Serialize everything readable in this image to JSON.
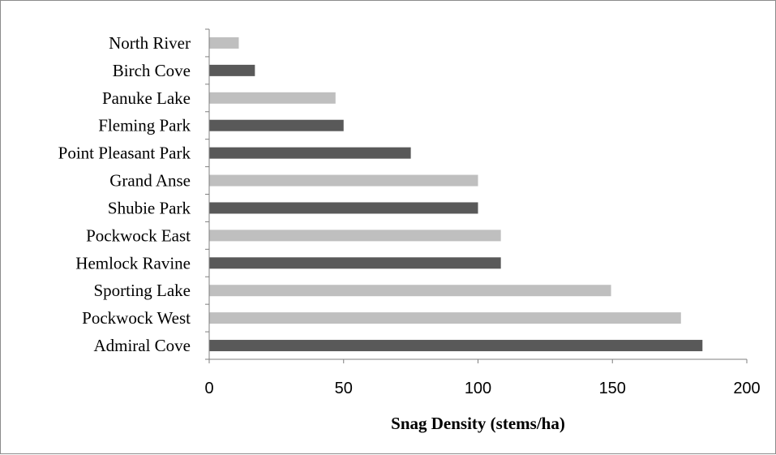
{
  "chart_data": {
    "type": "bar",
    "orientation": "horizontal",
    "title": "",
    "xlabel": "Snag Density (stems/ha)",
    "ylabel": "",
    "xlim": [
      0,
      200
    ],
    "x_ticks": [
      0,
      50,
      100,
      150,
      200
    ],
    "grid": false,
    "legend": "none",
    "categories": [
      "North River",
      "Birch Cove",
      "Panuke Lake",
      "Fleming Park",
      "Point Pleasant Park",
      "Grand Anse",
      "Shubie Park",
      "Pockwock East",
      "Hemlock Ravine",
      "Sporting Lake",
      "Pockwock West",
      "Admiral Cove"
    ],
    "values": [
      11,
      17,
      47,
      50,
      75,
      100,
      100,
      108.5,
      108.5,
      149.5,
      175.5,
      183.5
    ],
    "bar_colors": [
      "#bfbfbf",
      "#595959",
      "#bfbfbf",
      "#595959",
      "#595959",
      "#bfbfbf",
      "#595959",
      "#bfbfbf",
      "#595959",
      "#bfbfbf",
      "#bfbfbf",
      "#595959"
    ]
  }
}
